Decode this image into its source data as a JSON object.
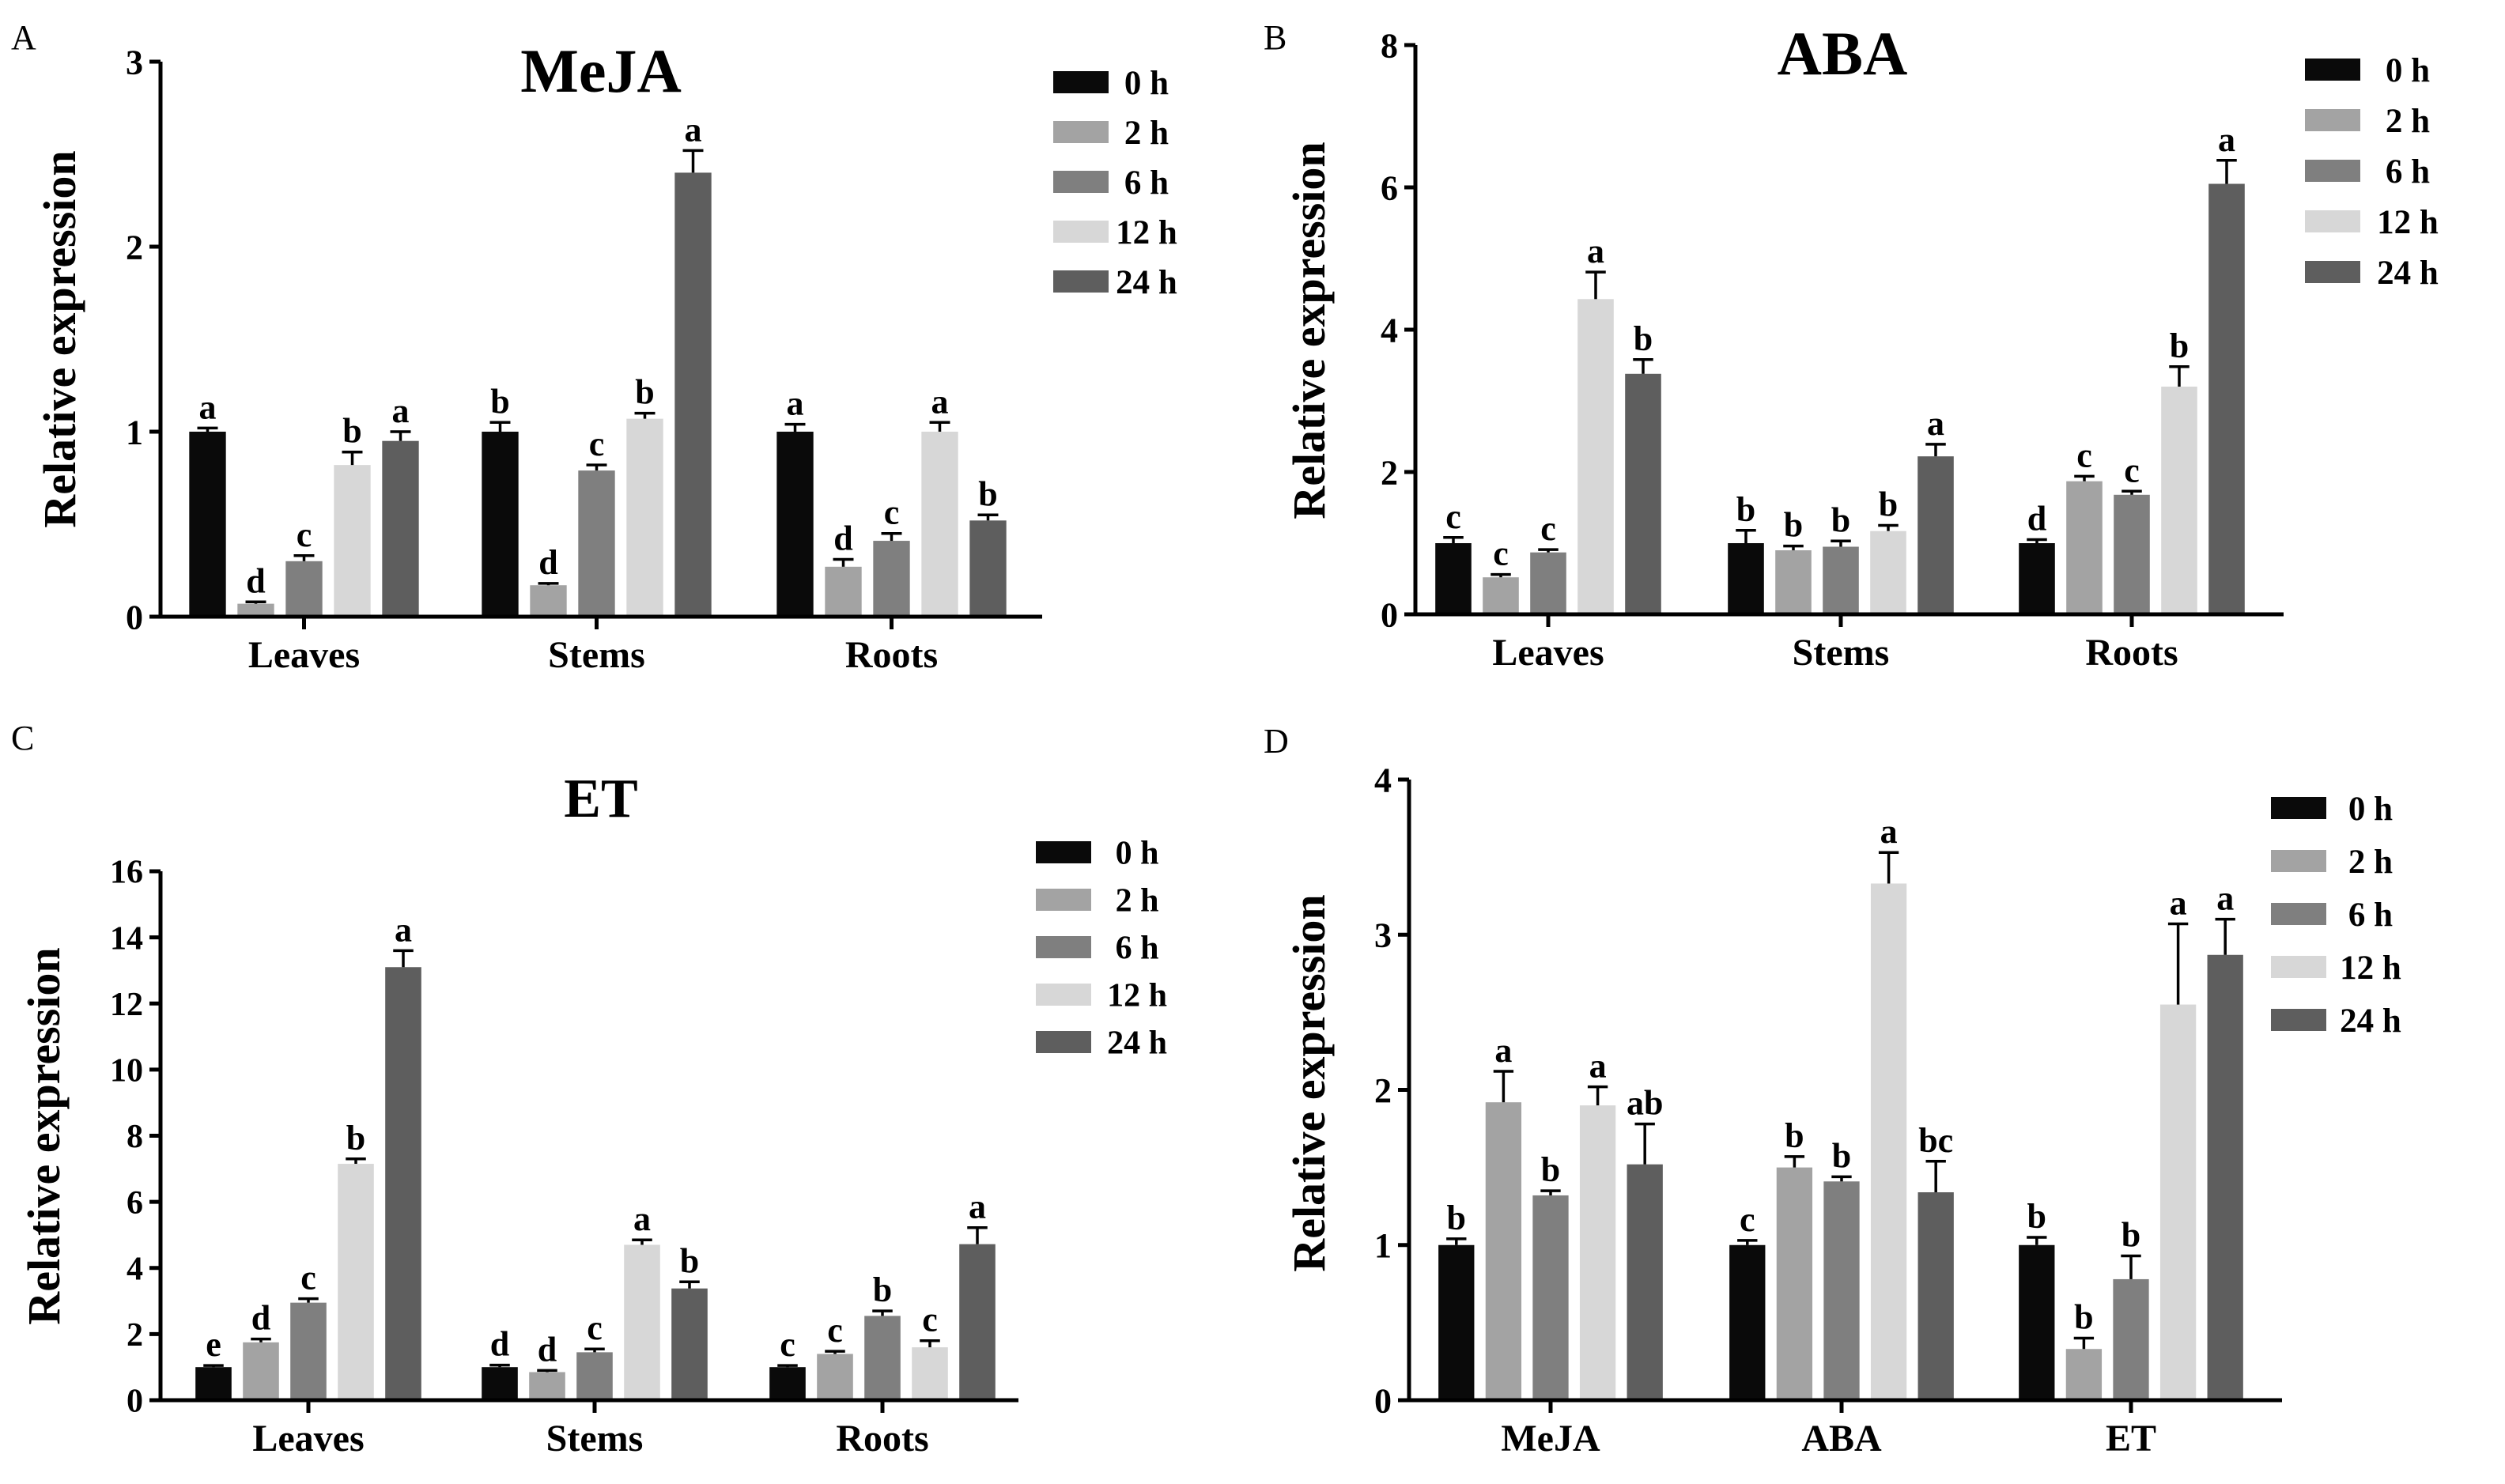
{
  "colors": {
    "0 h": "#0a0a0a",
    "2 h": "#a3a3a3",
    "6 h": "#7f7f7f",
    "12 h": "#d7d7d7",
    "24 h": "#5e5e5e"
  },
  "chart_data": [
    {
      "panel": "A",
      "type": "bar",
      "title": "MeJA",
      "xlabel": "",
      "ylabel": "Relative expression",
      "categories": [
        "Leaves",
        "Stems",
        "Roots"
      ],
      "ylim": [
        0,
        3
      ],
      "yticks": [
        0,
        1,
        2,
        3
      ],
      "legend_position": "top-right",
      "series": [
        {
          "name": "0 h",
          "values": [
            1.0,
            1.0,
            1.0
          ],
          "errors": [
            0.02,
            0.05,
            0.04
          ],
          "letters": [
            "a",
            "b",
            "a"
          ]
        },
        {
          "name": "2 h",
          "values": [
            0.07,
            0.17,
            0.27
          ],
          "errors": [
            0.01,
            0.01,
            0.04
          ],
          "letters": [
            "d",
            "d",
            "d"
          ]
        },
        {
          "name": "6 h",
          "values": [
            0.3,
            0.79,
            0.41
          ],
          "errors": [
            0.03,
            0.03,
            0.04
          ],
          "letters": [
            "c",
            "c",
            "c"
          ]
        },
        {
          "name": "12 h",
          "values": [
            0.82,
            1.07,
            1.0
          ],
          "errors": [
            0.07,
            0.03,
            0.05
          ],
          "letters": [
            "b",
            "b",
            "a"
          ]
        },
        {
          "name": "24 h",
          "values": [
            0.95,
            2.4,
            0.52
          ],
          "errors": [
            0.05,
            0.12,
            0.03
          ],
          "letters": [
            "a",
            "a",
            "b"
          ]
        }
      ]
    },
    {
      "panel": "B",
      "type": "bar",
      "title": "ABA",
      "xlabel": "",
      "ylabel": "Relative expression",
      "categories": [
        "Leaves",
        "Stems",
        "Roots"
      ],
      "ylim": [
        0,
        8
      ],
      "yticks": [
        0,
        2,
        4,
        6,
        8
      ],
      "legend_position": "top-right",
      "series": [
        {
          "name": "0 h",
          "values": [
            1.0,
            1.0,
            1.0
          ],
          "errors": [
            0.08,
            0.18,
            0.05
          ],
          "letters": [
            "c",
            "b",
            "d"
          ]
        },
        {
          "name": "2 h",
          "values": [
            0.52,
            0.9,
            1.87
          ],
          "errors": [
            0.04,
            0.06,
            0.07
          ],
          "letters": [
            "c",
            "b",
            "c"
          ]
        },
        {
          "name": "6 h",
          "values": [
            0.87,
            0.95,
            1.68
          ],
          "errors": [
            0.04,
            0.08,
            0.05
          ],
          "letters": [
            "c",
            "b",
            "c"
          ]
        },
        {
          "name": "12 h",
          "values": [
            4.43,
            1.17,
            3.2
          ],
          "errors": [
            0.38,
            0.08,
            0.28
          ],
          "letters": [
            "a",
            "b",
            "b"
          ]
        },
        {
          "name": "24 h",
          "values": [
            3.38,
            2.22,
            6.05
          ],
          "errors": [
            0.2,
            0.17,
            0.33
          ],
          "letters": [
            "b",
            "a",
            "a"
          ]
        }
      ]
    },
    {
      "panel": "C",
      "type": "bar",
      "title": "ET",
      "xlabel": "",
      "ylabel": "Relative expression",
      "categories": [
        "Leaves",
        "Stems",
        "Roots"
      ],
      "ylim": [
        0,
        16
      ],
      "yticks": [
        0,
        2,
        4,
        6,
        8,
        10,
        12,
        14,
        16
      ],
      "legend_position": "top-right",
      "series": [
        {
          "name": "0 h",
          "values": [
            1.0,
            1.0,
            1.0
          ],
          "errors": [
            0.05,
            0.06,
            0.05
          ],
          "letters": [
            "e",
            "d",
            "c"
          ]
        },
        {
          "name": "2 h",
          "values": [
            1.75,
            0.85,
            1.4
          ],
          "errors": [
            0.1,
            0.05,
            0.08
          ],
          "letters": [
            "d",
            "d",
            "c"
          ]
        },
        {
          "name": "6 h",
          "values": [
            2.95,
            1.45,
            2.55
          ],
          "errors": [
            0.12,
            0.1,
            0.15
          ],
          "letters": [
            "c",
            "c",
            "b"
          ]
        },
        {
          "name": "12 h",
          "values": [
            7.15,
            4.7,
            1.6
          ],
          "errors": [
            0.15,
            0.15,
            0.2
          ],
          "letters": [
            "b",
            "a",
            "c"
          ]
        },
        {
          "name": "24 h",
          "values": [
            13.1,
            3.38,
            4.72
          ],
          "errors": [
            0.5,
            0.2,
            0.5
          ],
          "letters": [
            "a",
            "b",
            "a"
          ]
        }
      ]
    },
    {
      "panel": "D",
      "type": "bar",
      "title": "",
      "xlabel": "",
      "ylabel": "Relative expression",
      "categories": [
        "MeJA",
        "ABA",
        "ET"
      ],
      "ylim": [
        0,
        4
      ],
      "yticks": [
        0,
        1,
        2,
        3,
        4
      ],
      "legend_position": "top-right",
      "series": [
        {
          "name": "0 h",
          "values": [
            1.0,
            1.0,
            1.0
          ],
          "errors": [
            0.04,
            0.03,
            0.05
          ],
          "letters": [
            "b",
            "c",
            "b"
          ]
        },
        {
          "name": "2 h",
          "values": [
            1.92,
            1.5,
            0.33
          ],
          "errors": [
            0.2,
            0.07,
            0.07
          ],
          "letters": [
            "a",
            "b",
            "b"
          ]
        },
        {
          "name": "6 h",
          "values": [
            1.32,
            1.41,
            0.78
          ],
          "errors": [
            0.03,
            0.03,
            0.15
          ],
          "letters": [
            "b",
            "b",
            "b"
          ]
        },
        {
          "name": "12 h",
          "values": [
            1.9,
            3.33,
            2.55
          ],
          "errors": [
            0.12,
            0.2,
            0.52
          ],
          "letters": [
            "a",
            "a",
            "a"
          ]
        },
        {
          "name": "24 h",
          "values": [
            1.52,
            1.34,
            2.87
          ],
          "errors": [
            0.26,
            0.2,
            0.23
          ],
          "letters": [
            "ab",
            "bc",
            "a"
          ]
        }
      ]
    }
  ]
}
